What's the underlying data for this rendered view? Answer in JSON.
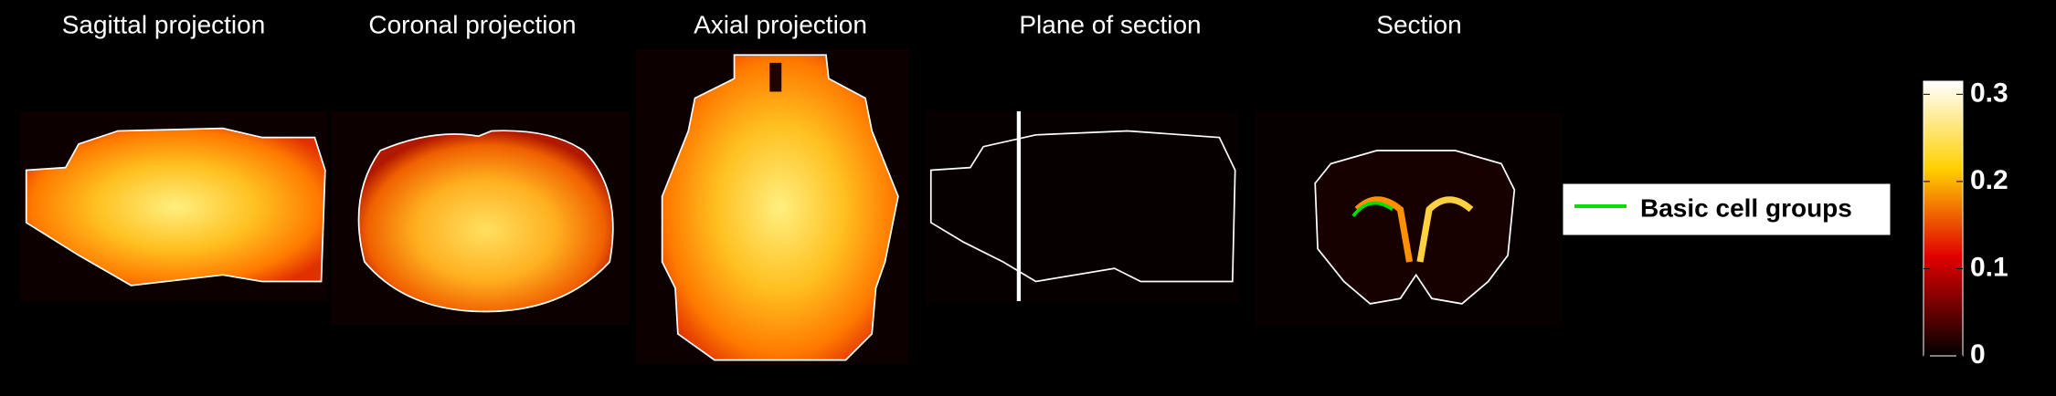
{
  "panels": [
    {
      "title": "Sagittal projection"
    },
    {
      "title": "Coronal projection"
    },
    {
      "title": "Axial projection"
    },
    {
      "title": "Plane of section"
    },
    {
      "title": "Section"
    }
  ],
  "legend": {
    "label": "Basic cell groups",
    "color": "#00e000"
  },
  "colorbar": {
    "lim": [
      0,
      0.315
    ],
    "ticks": [
      0,
      0.1,
      0.2,
      0.3
    ]
  }
}
